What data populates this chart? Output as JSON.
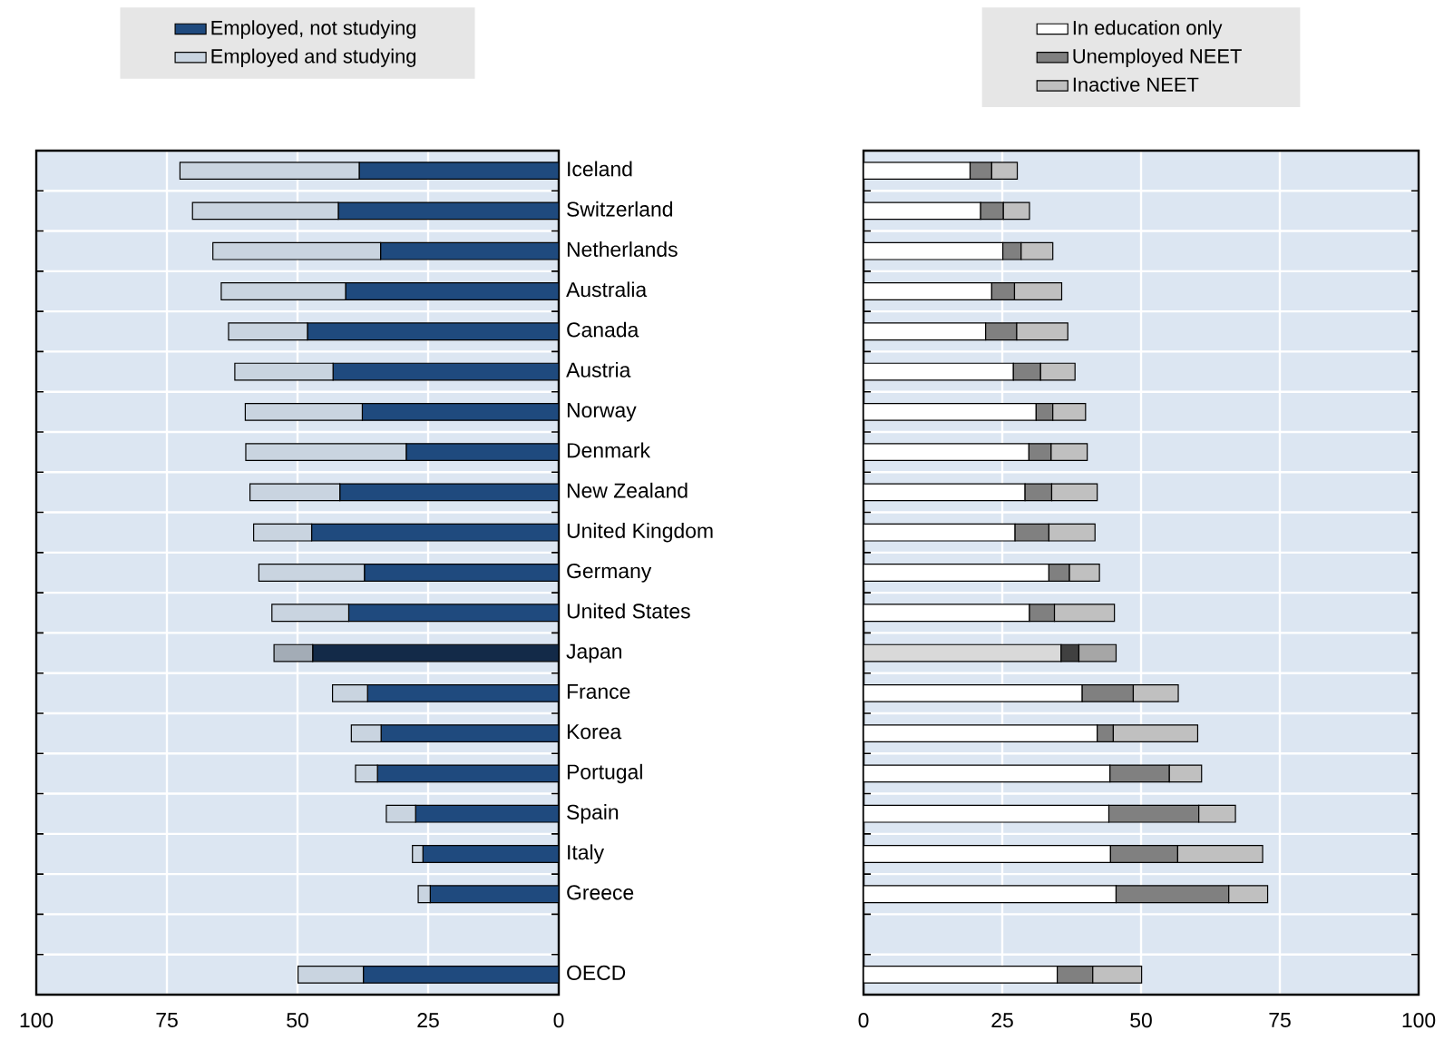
{
  "chart_data": [
    {
      "type": "bar",
      "orientation": "horizontal",
      "stacked": true,
      "categories": [
        "Iceland",
        "Switzerland",
        "Netherlands",
        "Australia",
        "Canada",
        "Austria",
        "Norway",
        "Denmark",
        "New Zealand",
        "United Kingdom",
        "Germany",
        "United States",
        "Japan",
        "France",
        "Korea",
        "Portugal",
        "Spain",
        "Italy",
        "Greece",
        null,
        "OECD"
      ],
      "series": [
        {
          "name": "Employed, not studying",
          "color": "#1f4a7e",
          "colors": [
            "#1f4a7e",
            "#1f4a7e",
            "#1f4a7e",
            "#1f4a7e",
            "#1f4a7e",
            "#1f4a7e",
            "#1f4a7e",
            "#1f4a7e",
            "#1f4a7e",
            "#1f4a7e",
            "#1f4a7e",
            "#1f4a7e",
            "#132a48",
            "#1f4a7e",
            "#1f4a7e",
            "#1f4a7e",
            "#1f4a7e",
            "#1f4a7e",
            "#1f4a7e",
            "#1f4a7e",
            "#1f4a7e"
          ],
          "values": [
            38.2,
            42.2,
            34.1,
            40.8,
            48.1,
            43.2,
            37.6,
            29.2,
            41.9,
            47.3,
            37.2,
            40.2,
            47.1,
            36.6,
            34.0,
            34.7,
            27.4,
            26.0,
            24.6,
            null,
            37.4
          ]
        },
        {
          "name": "Employed and studying",
          "color": "#c9d4e0",
          "colors": [
            "#c9d4e0",
            "#c9d4e0",
            "#c9d4e0",
            "#c9d4e0",
            "#c9d4e0",
            "#c9d4e0",
            "#c9d4e0",
            "#c9d4e0",
            "#c9d4e0",
            "#c9d4e0",
            "#c9d4e0",
            "#c9d4e0",
            "#a3acb6",
            "#c9d4e0",
            "#c9d4e0",
            "#c9d4e0",
            "#c9d4e0",
            "#c9d4e0",
            "#c9d4e0",
            "#c9d4e0",
            "#c9d4e0"
          ],
          "values": [
            34.3,
            27.9,
            32.1,
            23.8,
            15.1,
            18.8,
            22.4,
            30.7,
            17.2,
            11.1,
            20.2,
            14.7,
            7.4,
            6.7,
            5.7,
            4.2,
            5.6,
            2.0,
            2.3,
            null,
            12.5
          ]
        }
      ],
      "xlim": [
        100,
        0
      ],
      "xticks": [
        100,
        75,
        50,
        25,
        0
      ],
      "grid": true,
      "legend": "top"
    },
    {
      "type": "bar",
      "orientation": "horizontal",
      "stacked": true,
      "categories": [
        null,
        null,
        null,
        null,
        null,
        null,
        null,
        null,
        null,
        null,
        null,
        null,
        null,
        null,
        null,
        null,
        null,
        null,
        null,
        null,
        null
      ],
      "series": [
        {
          "name": "In education only",
          "color": "#ffffff",
          "colors": [
            "#ffffff",
            "#ffffff",
            "#ffffff",
            "#ffffff",
            "#ffffff",
            "#ffffff",
            "#ffffff",
            "#ffffff",
            "#ffffff",
            "#ffffff",
            "#ffffff",
            "#ffffff",
            "#d9d9d9",
            "#ffffff",
            "#ffffff",
            "#ffffff",
            "#ffffff",
            "#ffffff",
            "#ffffff",
            "#ffffff",
            "#ffffff"
          ],
          "values": [
            19.2,
            21.1,
            25.1,
            23.1,
            22.0,
            27.0,
            31.1,
            29.8,
            29.1,
            27.3,
            33.4,
            29.9,
            35.6,
            39.4,
            42.1,
            44.4,
            44.2,
            44.5,
            45.5,
            null,
            34.9
          ]
        },
        {
          "name": "Unemployed NEET",
          "color": "#808080",
          "colors": [
            "#808080",
            "#808080",
            "#808080",
            "#808080",
            "#808080",
            "#808080",
            "#808080",
            "#808080",
            "#808080",
            "#808080",
            "#808080",
            "#808080",
            "#404040",
            "#808080",
            "#808080",
            "#808080",
            "#808080",
            "#808080",
            "#808080",
            "#808080",
            "#808080"
          ],
          "values": [
            3.9,
            4.1,
            3.3,
            4.1,
            5.6,
            4.9,
            3.0,
            4.0,
            4.8,
            6.1,
            3.7,
            4.5,
            3.2,
            9.2,
            2.9,
            10.7,
            16.2,
            12.1,
            20.3,
            null,
            6.4
          ]
        },
        {
          "name": "Inactive NEET",
          "color": "#c0c0c0",
          "colors": [
            "#c0c0c0",
            "#c0c0c0",
            "#c0c0c0",
            "#c0c0c0",
            "#c0c0c0",
            "#c0c0c0",
            "#c0c0c0",
            "#c0c0c0",
            "#c0c0c0",
            "#c0c0c0",
            "#c0c0c0",
            "#c0c0c0",
            "#a6a6a6",
            "#c0c0c0",
            "#c0c0c0",
            "#c0c0c0",
            "#c0c0c0",
            "#c0c0c0",
            "#c0c0c0",
            "#c0c0c0",
            "#c0c0c0"
          ],
          "values": [
            4.6,
            4.7,
            5.7,
            8.5,
            9.2,
            6.2,
            5.9,
            6.5,
            8.2,
            8.3,
            5.4,
            10.8,
            6.7,
            8.1,
            15.2,
            5.8,
            6.6,
            15.3,
            7.0,
            null,
            8.8
          ]
        }
      ],
      "xlim": [
        0,
        100
      ],
      "xticks": [
        0,
        25,
        50,
        75,
        100
      ],
      "grid": true,
      "legend": "top",
      "tick_labels": "x"
    }
  ]
}
